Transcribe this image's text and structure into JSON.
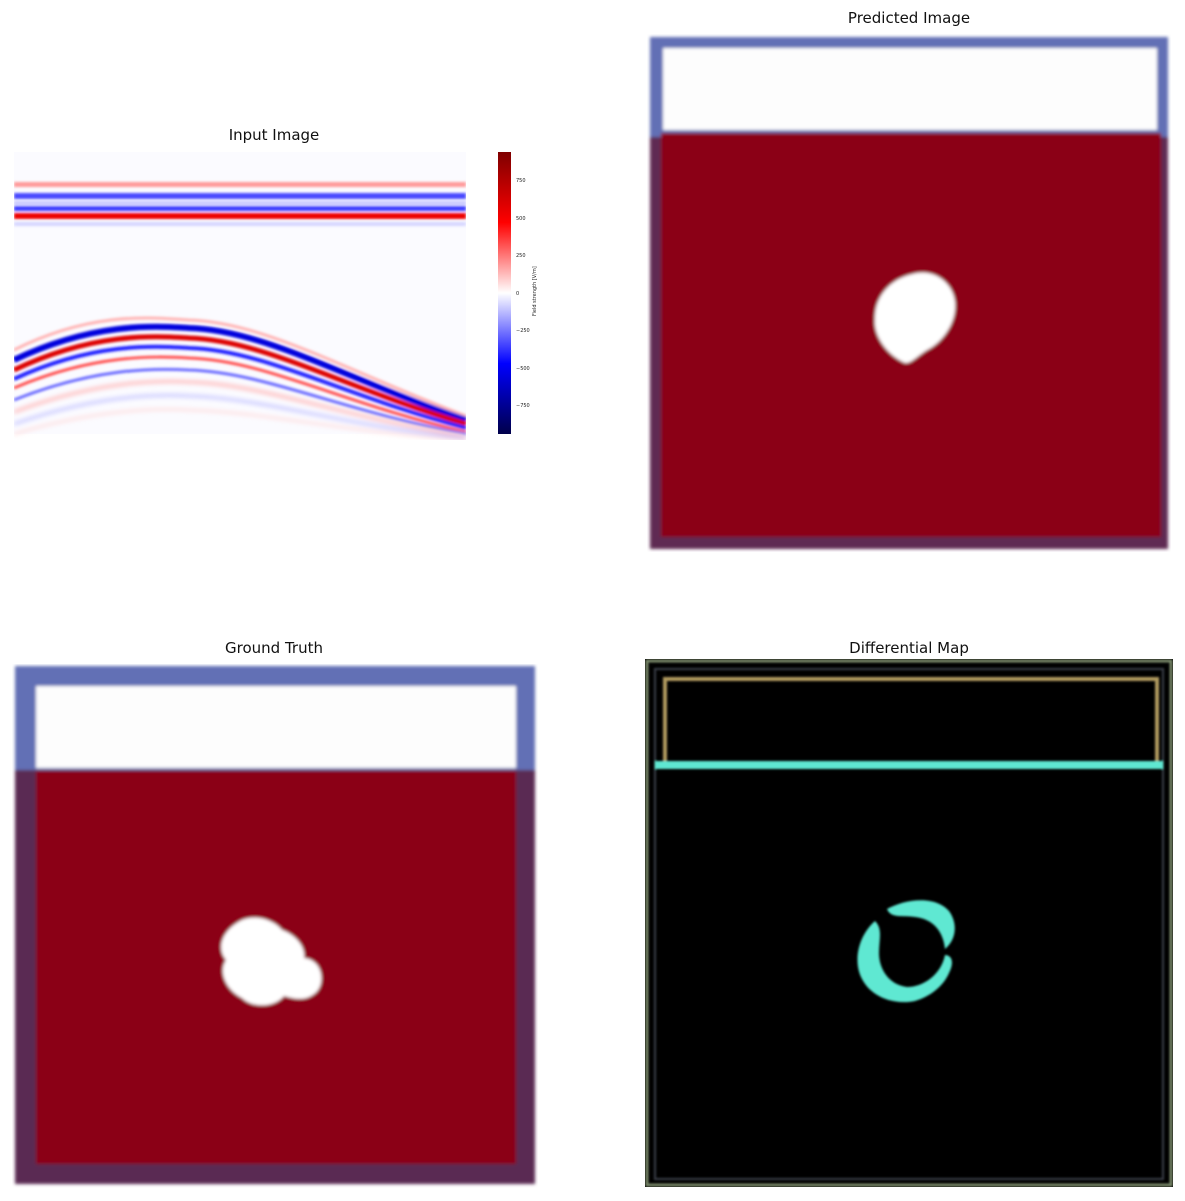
{
  "panels": {
    "input": {
      "title": "Input Image"
    },
    "predicted": {
      "title": "Predicted Image"
    },
    "ground_truth": {
      "title": "Ground Truth"
    },
    "differential": {
      "title": "Differential Map"
    }
  },
  "colorbar": {
    "label": "Field strength [V/m]",
    "ticks": [
      "750",
      "500",
      "250",
      "0",
      "−250",
      "−500",
      "−750"
    ]
  },
  "colors": {
    "dark_red": "#8b0019",
    "border_blue": "#6471b5",
    "border_purple": "#5a2850",
    "white": "#ffffff",
    "cyan": "#5ee8d2",
    "olive": "#a89a5a",
    "black": "#000000"
  }
}
